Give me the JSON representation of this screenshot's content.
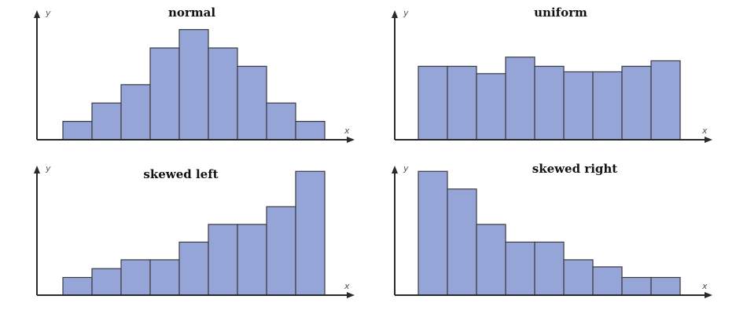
{
  "chart_data": [
    {
      "type": "bar",
      "title": "normal",
      "xlabel": "x",
      "ylabel": "y",
      "values": [
        1,
        2,
        3,
        5,
        6,
        5,
        4,
        2,
        1
      ],
      "ylim": [
        0,
        6.2
      ]
    },
    {
      "type": "bar",
      "title": "uniform",
      "xlabel": "x",
      "ylabel": "y",
      "values": [
        4.0,
        4.0,
        3.6,
        4.5,
        4.0,
        3.7,
        3.7,
        4.0,
        4.3
      ],
      "ylim": [
        0,
        6.2
      ]
    },
    {
      "type": "bar",
      "title": "skewed left",
      "xlabel": "x",
      "ylabel": "y",
      "values": [
        1,
        1.5,
        2,
        2,
        3,
        4,
        4,
        5,
        7
      ],
      "ylim": [
        0,
        7.1
      ]
    },
    {
      "type": "bar",
      "title": "skewed right",
      "xlabel": "x",
      "ylabel": "y",
      "values": [
        7,
        6,
        4,
        3,
        3,
        2,
        1.6,
        1,
        1
      ],
      "ylim": [
        0,
        7.1
      ]
    }
  ]
}
